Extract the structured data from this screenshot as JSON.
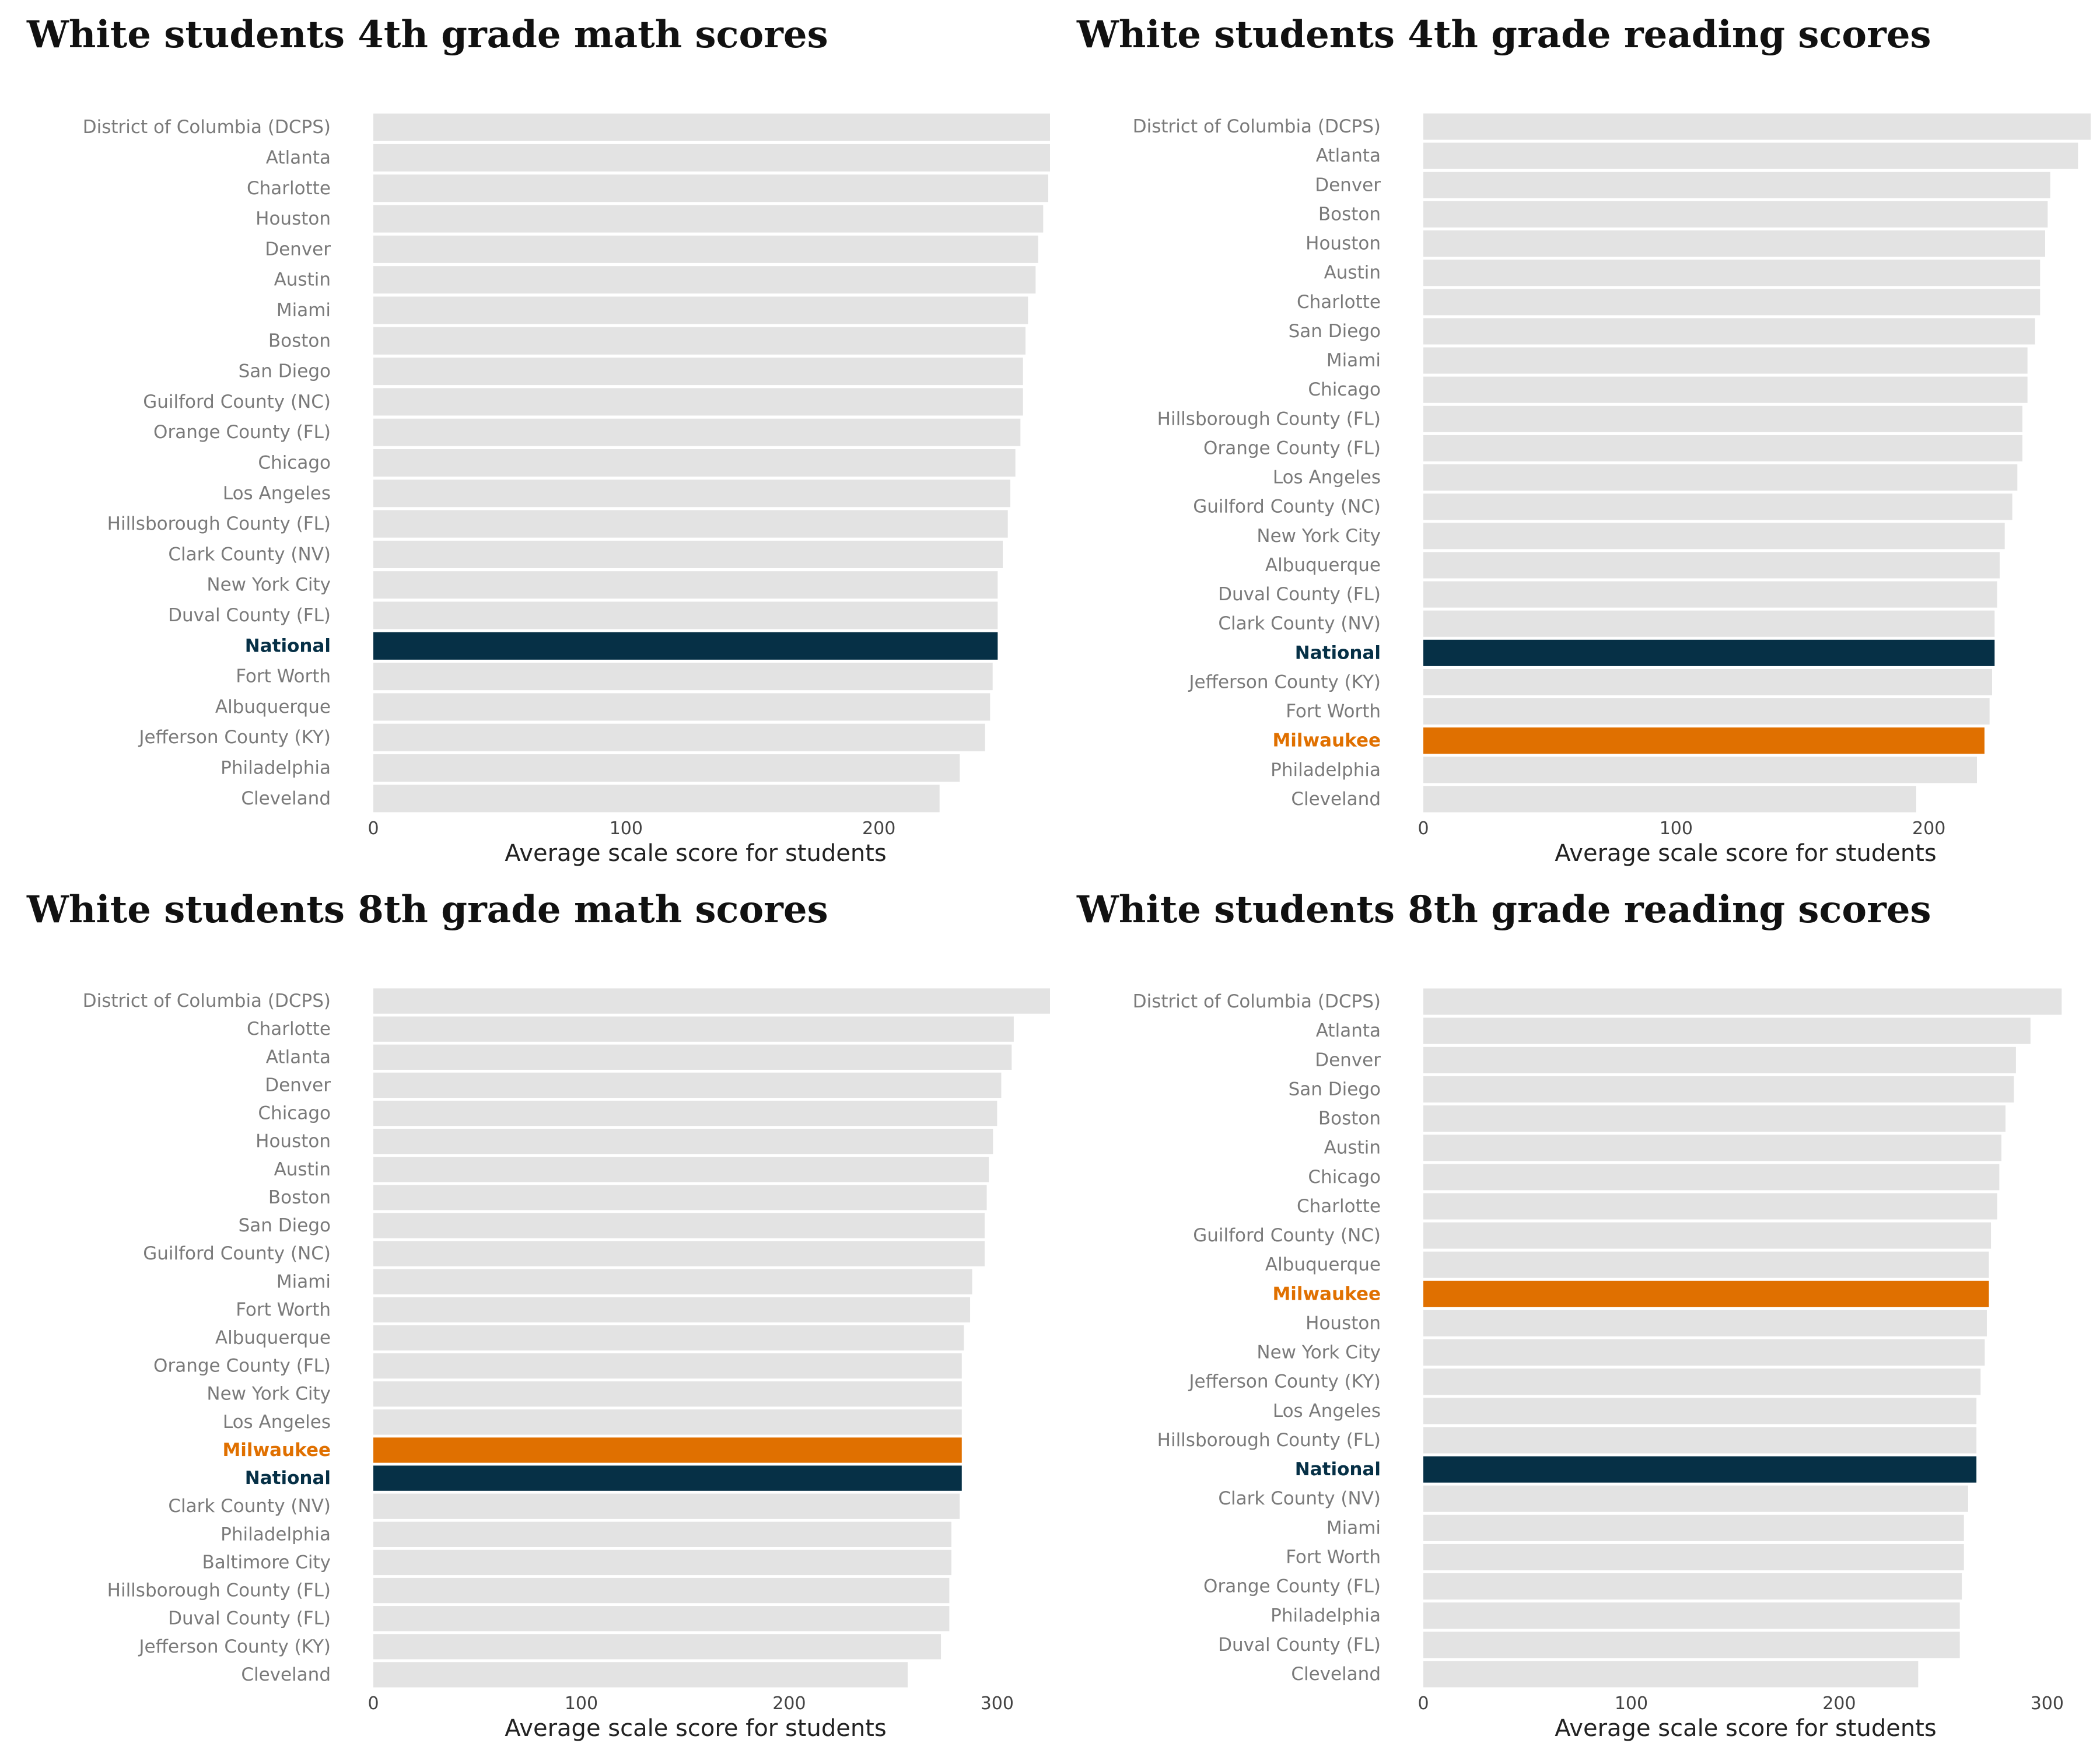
{
  "colors": {
    "bar": "#e3e3e3",
    "national": "#063046",
    "milwaukee": "#e07000",
    "label": "#7a7a7a"
  },
  "chart_data": [
    {
      "type": "bar",
      "orientation": "horizontal",
      "title": "White students 4th grade math scores",
      "xlabel": "Average scale score for students",
      "xlim": [
        0,
        255
      ],
      "xticks": [
        0,
        100,
        200
      ],
      "grid": false,
      "highlights": {
        "National": "national",
        "Milwaukee": "milwaukee"
      },
      "categories": [
        "District of Columbia (DCPS)",
        "Atlanta",
        "Charlotte",
        "Houston",
        "Denver",
        "Austin",
        "Miami",
        "Boston",
        "San Diego",
        "Guilford County (NC)",
        "Orange County (FL)",
        "Chicago",
        "Los Angeles",
        "Hillsborough County (FL)",
        "Clark County (NV)",
        "New York City",
        "Duval County (FL)",
        "National",
        "Fort Worth",
        "Albuquerque",
        "Jefferson County (KY)",
        "Philadelphia",
        "Cleveland"
      ],
      "values": [
        277,
        268,
        267,
        265,
        263,
        262,
        259,
        258,
        257,
        257,
        256,
        254,
        252,
        251,
        249,
        247,
        247,
        247,
        245,
        244,
        242,
        232,
        224
      ]
    },
    {
      "type": "bar",
      "orientation": "horizontal",
      "title": "White students 4th grade reading scores",
      "xlabel": "Average scale score for students",
      "xlim": [
        0,
        255
      ],
      "xticks": [
        0,
        100,
        200
      ],
      "grid": false,
      "highlights": {
        "National": "national",
        "Milwaukee": "milwaukee"
      },
      "categories": [
        "District of Columbia (DCPS)",
        "Atlanta",
        "Denver",
        "Boston",
        "Houston",
        "Austin",
        "Charlotte",
        "San Diego",
        "Miami",
        "Chicago",
        "Hillsborough County (FL)",
        "Orange County (FL)",
        "Los Angeles",
        "Guilford County (NC)",
        "New York City",
        "Albuquerque",
        "Duval County (FL)",
        "Clark County (NV)",
        "National",
        "Jefferson County (KY)",
        "Fort Worth",
        "Milwaukee",
        "Philadelphia",
        "Cleveland"
      ],
      "values": [
        264,
        259,
        248,
        247,
        246,
        244,
        244,
        242,
        239,
        239,
        237,
        237,
        235,
        233,
        230,
        228,
        227,
        226,
        226,
        225,
        224,
        222,
        219,
        195
      ]
    },
    {
      "type": "bar",
      "orientation": "horizontal",
      "title": "White students 8th grade math scores",
      "xlabel": "Average scale score for students",
      "xlim": [
        0,
        310
      ],
      "xticks": [
        0,
        100,
        200,
        300
      ],
      "grid": false,
      "highlights": {
        "National": "national",
        "Milwaukee": "milwaukee"
      },
      "categories": [
        "District of Columbia (DCPS)",
        "Charlotte",
        "Atlanta",
        "Denver",
        "Chicago",
        "Houston",
        "Austin",
        "Boston",
        "San Diego",
        "Guilford County (NC)",
        "Miami",
        "Fort Worth",
        "Albuquerque",
        "Orange County (FL)",
        "New York City",
        "Los Angeles",
        "Milwaukee",
        "National",
        "Clark County (NV)",
        "Philadelphia",
        "Baltimore City",
        "Hillsborough County (FL)",
        "Duval County (FL)",
        "Jefferson County (KY)",
        "Cleveland"
      ],
      "values": [
        328,
        308,
        307,
        302,
        300,
        298,
        296,
        295,
        294,
        294,
        288,
        287,
        284,
        283,
        283,
        283,
        283,
        283,
        282,
        278,
        278,
        277,
        277,
        273,
        257
      ]
    },
    {
      "type": "bar",
      "orientation": "horizontal",
      "title": "White students 8th grade reading scores",
      "xlabel": "Average scale score for students",
      "xlim": [
        0,
        310
      ],
      "xticks": [
        0,
        100,
        200,
        300
      ],
      "grid": false,
      "highlights": {
        "National": "national",
        "Milwaukee": "milwaukee"
      },
      "categories": [
        "District of Columbia (DCPS)",
        "Atlanta",
        "Denver",
        "San Diego",
        "Boston",
        "Austin",
        "Chicago",
        "Charlotte",
        "Guilford County (NC)",
        "Albuquerque",
        "Milwaukee",
        "Houston",
        "New York City",
        "Jefferson County (KY)",
        "Los Angeles",
        "Hillsborough County (FL)",
        "National",
        "Clark County (NV)",
        "Miami",
        "Fort Worth",
        "Orange County (FL)",
        "Philadelphia",
        "Duval County (FL)",
        "Cleveland"
      ],
      "values": [
        307,
        292,
        285,
        284,
        280,
        278,
        277,
        276,
        273,
        272,
        272,
        271,
        270,
        268,
        266,
        266,
        266,
        262,
        260,
        260,
        259,
        258,
        258,
        238
      ]
    }
  ]
}
